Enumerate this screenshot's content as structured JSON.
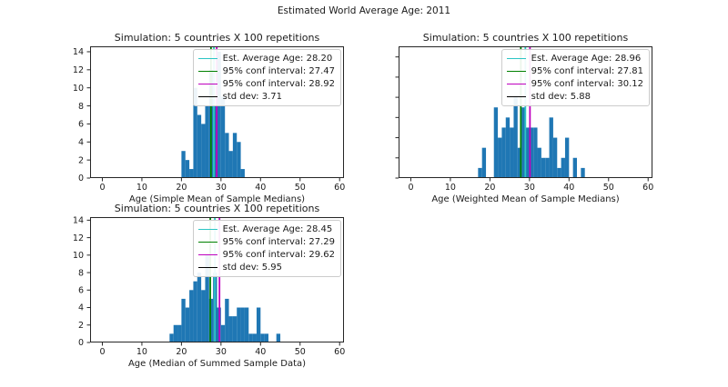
{
  "figure": {
    "suptitle": "Estimated World Average Age: 2011",
    "background": "#ffffff"
  },
  "colors": {
    "bar": "#1f77b4",
    "avg": "#2cc5c5",
    "ci_low": "#008000",
    "ci_high": "#bf00bf",
    "std": "#000000",
    "axis": "#262626",
    "legend_border": "#cccccc"
  },
  "chart_data": [
    {
      "type": "bar",
      "subtype": "histogram",
      "title": "Simulation: 5 countries X 100 repetitions",
      "xlabel": "Age (Simple Mean of Sample Medians)",
      "ylabel": "",
      "bins": {
        "start": 20,
        "width": 1
      },
      "values": [
        3,
        2,
        1,
        10,
        7,
        6,
        8,
        12,
        8,
        14,
        9,
        5,
        3,
        5,
        4,
        1
      ],
      "xlim": [
        -3.1,
        61.1
      ],
      "ylim": [
        0,
        14.6
      ],
      "xticks": [
        0,
        10,
        20,
        30,
        40,
        50,
        60
      ],
      "yticks": [
        0,
        2,
        4,
        6,
        8,
        10,
        12,
        14
      ],
      "ytick_labels_visible": true,
      "grid": false,
      "legend_position": "upper right",
      "lines": [
        {
          "label": "Est. Average Age: 28.20",
          "value": 28.2,
          "color_key": "avg"
        },
        {
          "label": "95% conf interval: 27.47",
          "value": 27.47,
          "color_key": "ci_low"
        },
        {
          "label": "95% conf interval: 28.92",
          "value": 28.92,
          "color_key": "ci_high"
        },
        {
          "label": "std dev: 3.71",
          "value": null,
          "color_key": "std"
        }
      ]
    },
    {
      "type": "bar",
      "subtype": "histogram",
      "title": "Simulation: 5 countries X 100 repetitions",
      "xlabel": "Age (Weighted Mean of Sample Medians)",
      "ylabel": "",
      "bins": {
        "start": 17,
        "width": 1
      },
      "values": [
        1,
        3,
        0,
        0,
        7,
        4,
        5,
        6,
        5,
        8,
        3,
        7,
        5,
        5,
        5,
        3,
        2,
        2,
        6,
        4,
        1,
        2,
        4,
        0,
        2,
        0,
        1
      ],
      "xlim": [
        -3.1,
        61.1
      ],
      "ylim": [
        0,
        13.05
      ],
      "xticks": [
        0,
        10,
        20,
        30,
        40,
        50,
        60
      ],
      "yticks": [
        0,
        2,
        4,
        6,
        8,
        10,
        12
      ],
      "ytick_labels_visible": false,
      "grid": false,
      "legend_position": "upper right",
      "lines": [
        {
          "label": "Est. Average Age: 28.96",
          "value": 28.96,
          "color_key": "avg"
        },
        {
          "label": "95% conf interval: 27.81",
          "value": 27.81,
          "color_key": "ci_low"
        },
        {
          "label": "95% conf interval: 30.12",
          "value": 30.12,
          "color_key": "ci_high"
        },
        {
          "label": "std dev: 5.88",
          "value": null,
          "color_key": "std"
        }
      ]
    },
    {
      "type": "bar",
      "subtype": "histogram",
      "title": "Simulation: 5 countries X 100 repetitions",
      "xlabel": "Age (Median of Summed Sample Data)",
      "ylabel": "",
      "bins": {
        "start": 17,
        "width": 1
      },
      "values": [
        1,
        2,
        2,
        5,
        4,
        6,
        7,
        8,
        6,
        10,
        5,
        8,
        4,
        2,
        5,
        3,
        3,
        4,
        4,
        4,
        1,
        1,
        4,
        1,
        1,
        0,
        0,
        1
      ],
      "xlim": [
        -3.1,
        61.1
      ],
      "ylim": [
        0,
        14.35
      ],
      "xticks": [
        0,
        10,
        20,
        30,
        40,
        50,
        60
      ],
      "yticks": [
        0,
        2,
        4,
        6,
        8,
        10,
        12,
        14
      ],
      "ytick_labels_visible": true,
      "grid": false,
      "legend_position": "upper right",
      "lines": [
        {
          "label": "Est. Average Age: 28.45",
          "value": 28.45,
          "color_key": "avg"
        },
        {
          "label": "95% conf interval: 27.29",
          "value": 27.29,
          "color_key": "ci_low"
        },
        {
          "label": "95% conf interval: 29.62",
          "value": 29.62,
          "color_key": "ci_high"
        },
        {
          "label": "std dev: 5.95",
          "value": null,
          "color_key": "std"
        }
      ]
    }
  ]
}
